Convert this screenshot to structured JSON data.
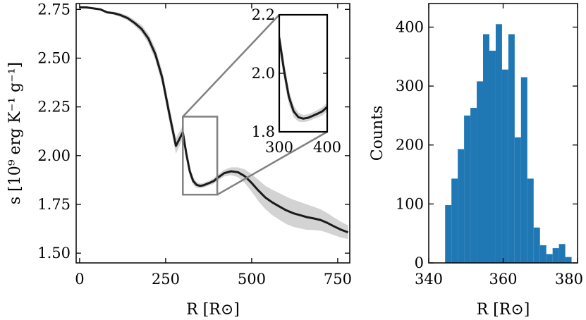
{
  "chart_data": [
    {
      "type": "line",
      "xlabel": "R [R⊙]",
      "ylabel": "s [10⁹ erg K⁻¹ g⁻¹]",
      "xlim": [
        -10,
        785
      ],
      "ylim": [
        1.45,
        2.78
      ],
      "xticks": [
        0,
        250,
        500,
        750
      ],
      "yticks": [
        1.5,
        1.75,
        2.0,
        2.25,
        2.5,
        2.75
      ],
      "xtick_labels": [
        "0",
        "250",
        "500",
        "750"
      ],
      "ytick_labels": [
        "1.50",
        "1.75",
        "2.00",
        "2.25",
        "2.50",
        "2.75"
      ],
      "line_color": "#1a1a1a",
      "band_color": "#d3d3d3",
      "series": [
        {
          "x": [
            0,
            20,
            40,
            60,
            80,
            100,
            120,
            140,
            160,
            180,
            200,
            220,
            240,
            260,
            280,
            300,
            310,
            320,
            330,
            340,
            350,
            360,
            370,
            380,
            390,
            400,
            420,
            440,
            460,
            480,
            500,
            520,
            540,
            560,
            580,
            600,
            620,
            640,
            660,
            680,
            700,
            720,
            740,
            760,
            780
          ],
          "y": [
            2.76,
            2.76,
            2.755,
            2.75,
            2.735,
            2.73,
            2.72,
            2.705,
            2.68,
            2.65,
            2.6,
            2.52,
            2.4,
            2.22,
            2.05,
            2.12,
            2.01,
            1.92,
            1.87,
            1.85,
            1.845,
            1.848,
            1.855,
            1.862,
            1.87,
            1.885,
            1.91,
            1.92,
            1.915,
            1.895,
            1.86,
            1.82,
            1.785,
            1.76,
            1.74,
            1.72,
            1.705,
            1.695,
            1.685,
            1.678,
            1.67,
            1.655,
            1.637,
            1.62,
            1.607
          ],
          "band": [
            0.005,
            0.005,
            0.005,
            0.005,
            0.006,
            0.008,
            0.01,
            0.012,
            0.015,
            0.02,
            0.025,
            0.03,
            0.035,
            0.04,
            0.04,
            0.035,
            0.03,
            0.025,
            0.02,
            0.015,
            0.012,
            0.012,
            0.012,
            0.013,
            0.014,
            0.015,
            0.017,
            0.02,
            0.025,
            0.035,
            0.045,
            0.055,
            0.06,
            0.065,
            0.068,
            0.07,
            0.07,
            0.068,
            0.065,
            0.06,
            0.055,
            0.05,
            0.045,
            0.04,
            0.035
          ]
        }
      ],
      "zoom_box": {
        "xlim": [
          300,
          400
        ],
        "ylim": [
          1.8,
          2.2
        ]
      },
      "inset": {
        "xlim": [
          300,
          400
        ],
        "ylim": [
          1.8,
          2.2
        ],
        "xticks": [
          300,
          400
        ],
        "yticks": [
          1.8,
          2.0,
          2.2
        ],
        "xtick_labels": [
          "300",
          "400"
        ],
        "ytick_labels": [
          "1.8",
          "2.0",
          "2.2"
        ]
      }
    },
    {
      "type": "bar",
      "subtype": "histogram",
      "xlabel": "R [R⊙]",
      "ylabel": "Counts",
      "xlim": [
        340,
        380
      ],
      "ylim": [
        0,
        440
      ],
      "xticks": [
        340,
        360,
        380
      ],
      "yticks": [
        0,
        100,
        200,
        300,
        400
      ],
      "xtick_labels": [
        "340",
        "360",
        "380"
      ],
      "ytick_labels": [
        "0",
        "100",
        "200",
        "300",
        "400"
      ],
      "bar_color": "#1f77b4",
      "bin_edges": [
        344.4,
        346.1,
        347.8,
        349.5,
        351.2,
        352.9,
        354.6,
        356.3,
        358.0,
        359.7,
        361.4,
        363.1,
        364.8,
        366.5,
        368.2,
        369.9,
        371.6,
        373.3,
        375.0,
        376.7,
        378.4
      ],
      "counts": [
        98,
        143,
        193,
        250,
        263,
        308,
        388,
        360,
        405,
        328,
        388,
        213,
        315,
        143,
        60,
        30,
        15,
        25,
        32,
        10
      ]
    }
  ]
}
